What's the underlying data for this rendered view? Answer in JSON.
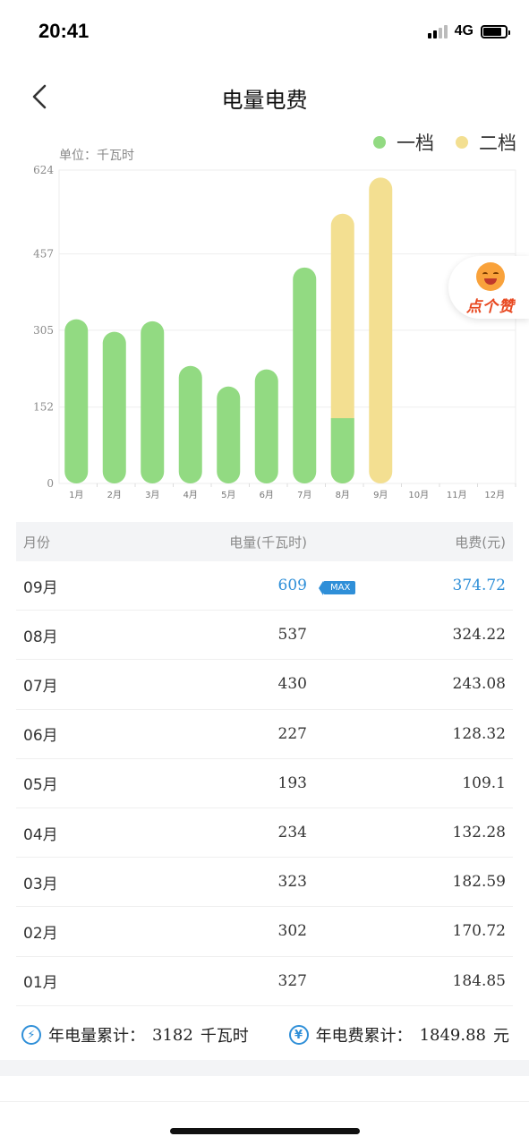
{
  "status": {
    "time": "20:41",
    "network": "4G"
  },
  "nav": {
    "title": "电量电费",
    "back_icon": "chevron-left-icon"
  },
  "legend": [
    {
      "label": "一档",
      "color": "#92da82"
    },
    {
      "label": "二档",
      "color": "#f3df91"
    }
  ],
  "unit_label": "单位：千瓦时",
  "chart_data": {
    "type": "bar",
    "stacked": true,
    "categories": [
      "1月",
      "2月",
      "3月",
      "4月",
      "5月",
      "6月",
      "7月",
      "8月",
      "9月",
      "10月",
      "11月",
      "12月"
    ],
    "series": [
      {
        "name": "一档",
        "color": "#92da82",
        "values": [
          327,
          302,
          323,
          234,
          193,
          227,
          430,
          130,
          0,
          0,
          0,
          0
        ]
      },
      {
        "name": "二档",
        "color": "#f3df91",
        "values": [
          0,
          0,
          0,
          0,
          0,
          0,
          0,
          407,
          609,
          0,
          0,
          0
        ]
      }
    ],
    "yticks": [
      "0",
      "152",
      "305",
      "457",
      "624"
    ],
    "ylim": [
      0,
      624
    ],
    "grid": true
  },
  "like_badge": {
    "label": "点个赞"
  },
  "table": {
    "headers": {
      "month": "月份",
      "kwh": "电量(千瓦时)",
      "fee": "电费(元)"
    },
    "max_tag": "MAX",
    "rows": [
      {
        "month": "09月",
        "kwh": "609",
        "fee": "374.72",
        "max": true
      },
      {
        "month": "08月",
        "kwh": "537",
        "fee": "324.22"
      },
      {
        "month": "07月",
        "kwh": "430",
        "fee": "243.08"
      },
      {
        "month": "06月",
        "kwh": "227",
        "fee": "128.32"
      },
      {
        "month": "05月",
        "kwh": "193",
        "fee": "109.1"
      },
      {
        "month": "04月",
        "kwh": "234",
        "fee": "132.28"
      },
      {
        "month": "03月",
        "kwh": "323",
        "fee": "182.59"
      },
      {
        "month": "02月",
        "kwh": "302",
        "fee": "170.72"
      },
      {
        "month": "01月",
        "kwh": "327",
        "fee": "184.85"
      }
    ]
  },
  "summary": {
    "kwh_label": "年电量累计：",
    "kwh_value": "3182",
    "kwh_unit": "千瓦时",
    "fee_label": "年电费累计：",
    "fee_value": "1849.88",
    "fee_unit": "元",
    "kwh_icon": "lightning-icon",
    "fee_icon": "yen-icon"
  }
}
